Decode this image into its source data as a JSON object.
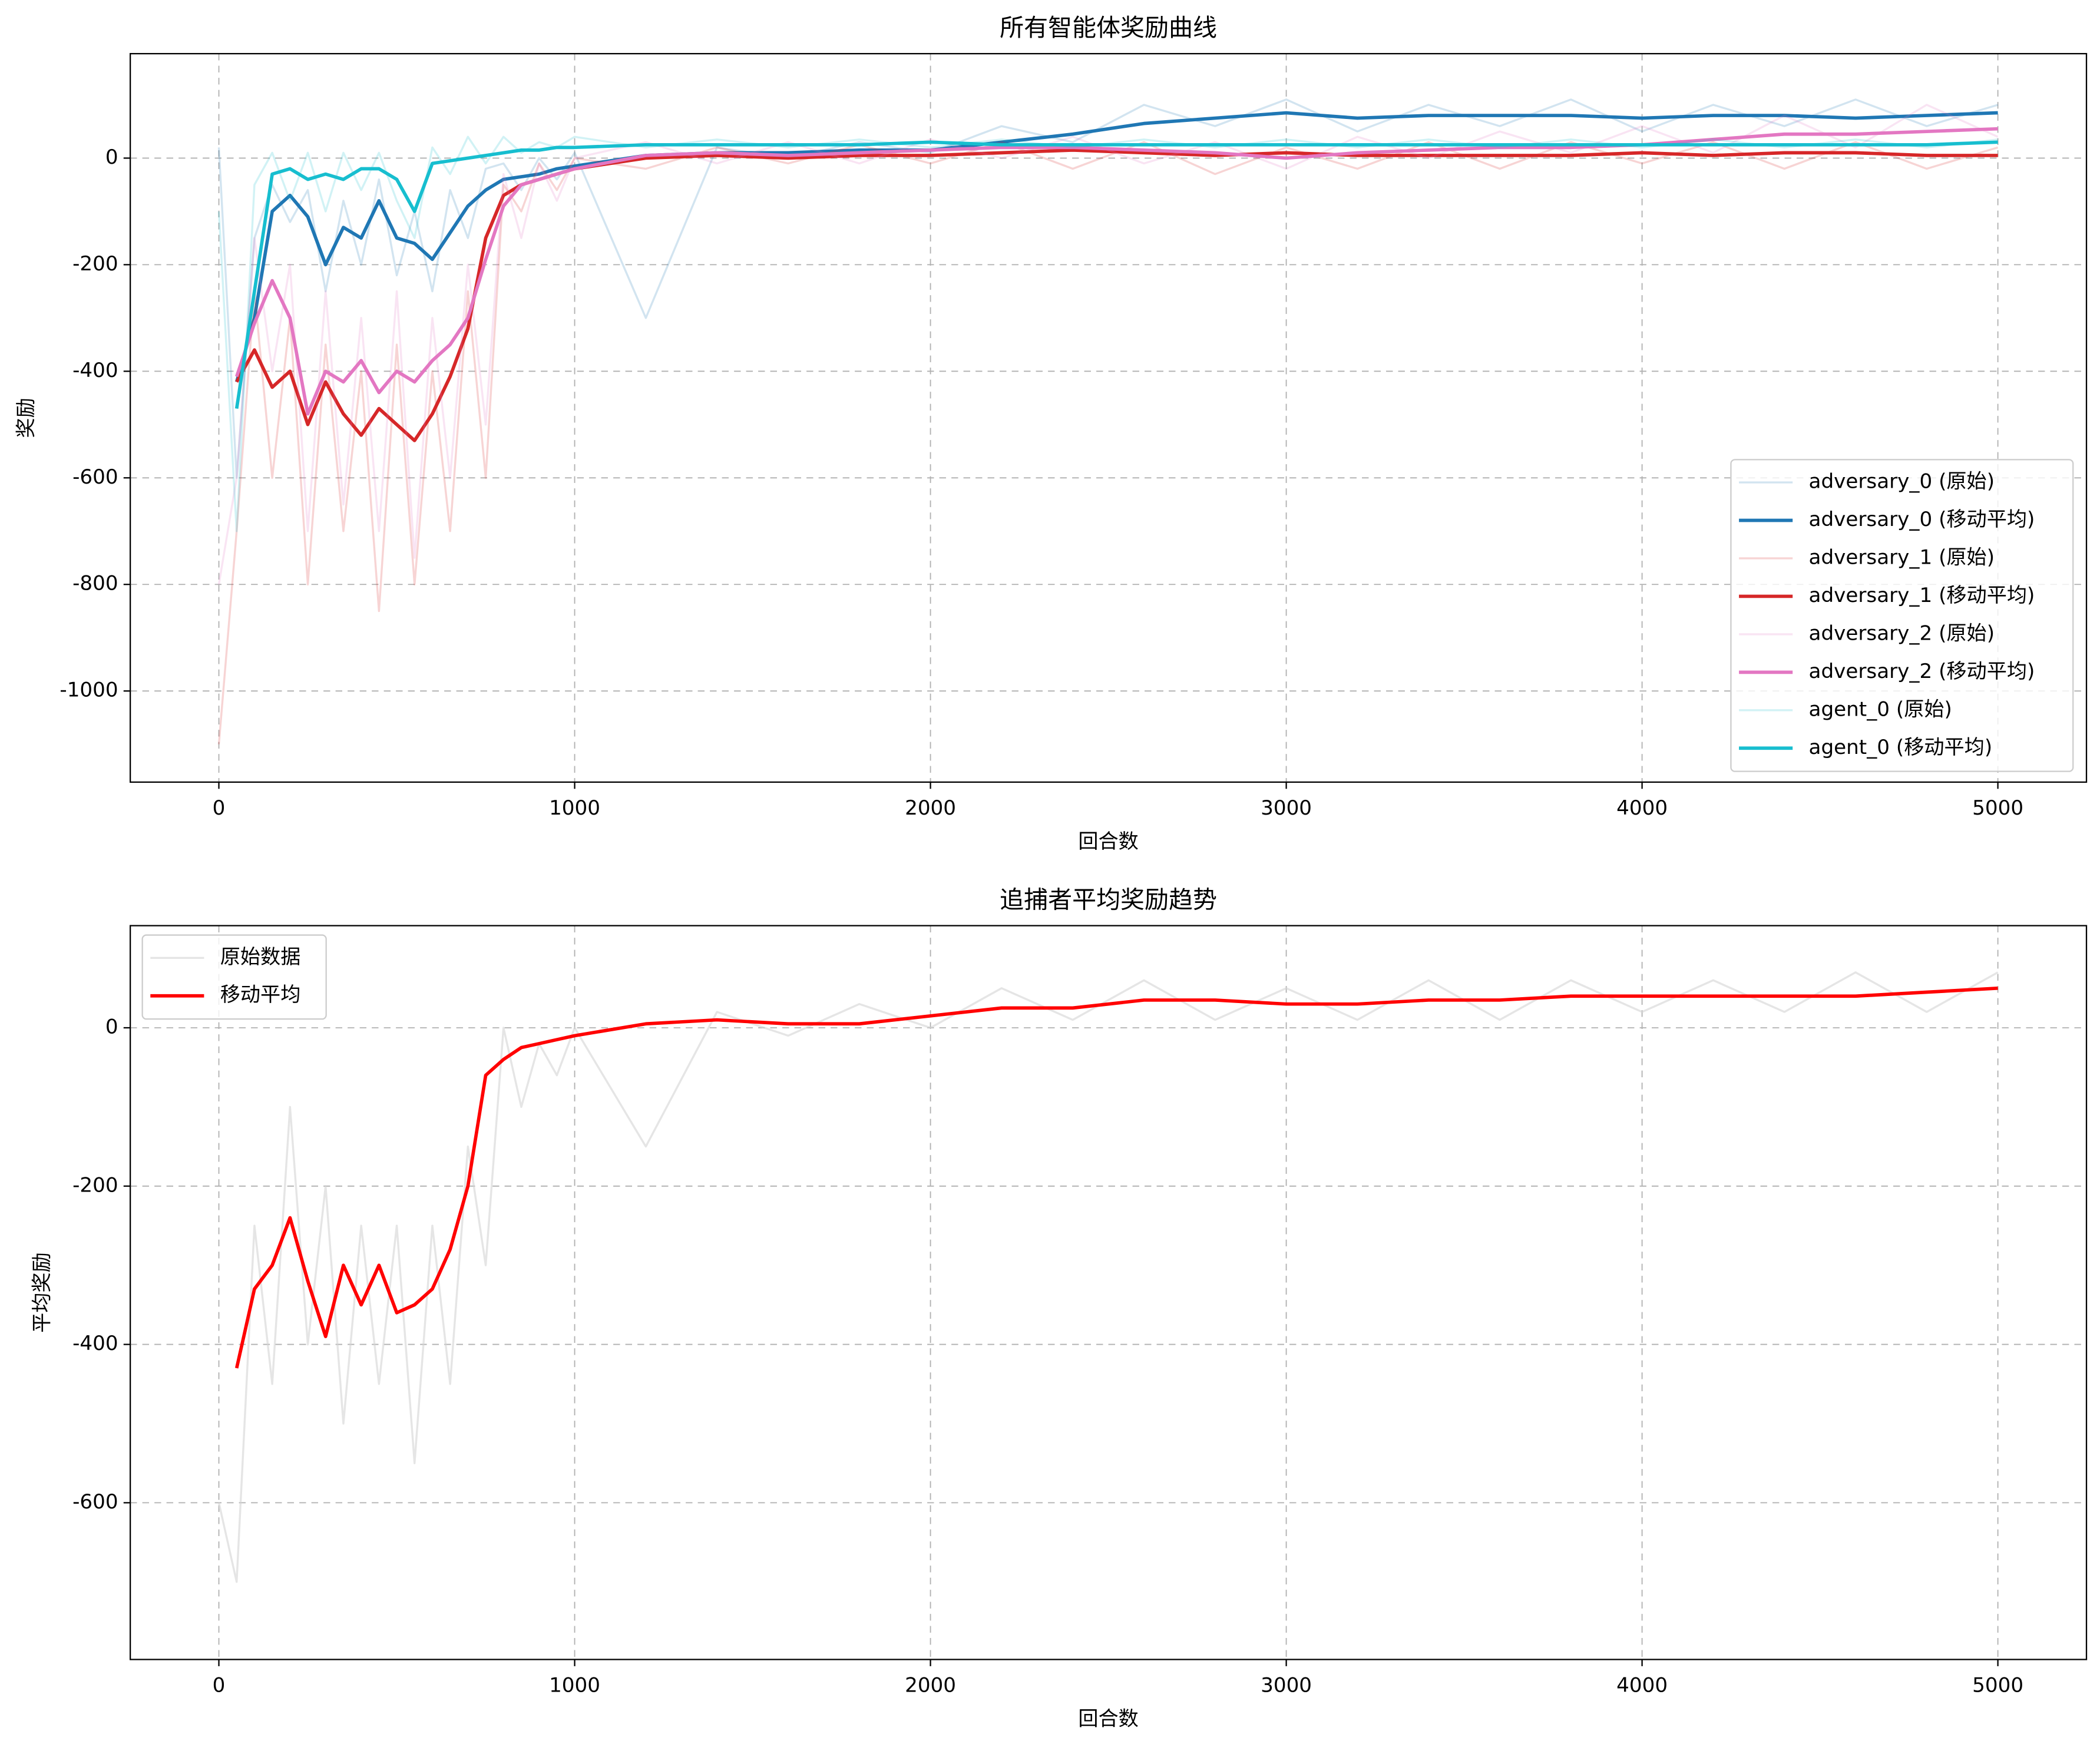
{
  "chart_data": [
    {
      "type": "line",
      "title": "所有智能体奖励曲线",
      "xlabel": "回合数",
      "ylabel": "奖励",
      "x": [
        0,
        50,
        100,
        150,
        200,
        250,
        300,
        350,
        400,
        450,
        500,
        550,
        600,
        650,
        700,
        750,
        800,
        850,
        900,
        950,
        1000,
        1200,
        1400,
        1600,
        1800,
        2000,
        2200,
        2400,
        2600,
        2800,
        3000,
        3200,
        3400,
        3600,
        3800,
        4000,
        4200,
        4400,
        4600,
        4800,
        5000
      ],
      "xlim": [
        -249,
        5249
      ],
      "ylim": [
        -1171,
        196
      ],
      "xticks": [
        0,
        1000,
        2000,
        3000,
        4000,
        5000
      ],
      "yticks": [
        -1000,
        -800,
        -600,
        -400,
        -200,
        0
      ],
      "grid": true,
      "legend": "lower right",
      "series": [
        {
          "name": "adversary_0 (原始)",
          "color": "#1f77b4",
          "alpha": 0.2,
          "values": [
            20,
            -600,
            -150,
            -50,
            -120,
            -60,
            -250,
            -80,
            -200,
            -40,
            -220,
            -100,
            -250,
            -60,
            -150,
            -20,
            -10,
            -60,
            0,
            -40,
            10,
            -300,
            20,
            0,
            30,
            10,
            60,
            30,
            100,
            60,
            110,
            50,
            100,
            60,
            110,
            50,
            100,
            60,
            110,
            60,
            100
          ]
        },
        {
          "name": "adversary_0 (移动平均)",
          "color": "#1f77b4",
          "alpha": 1,
          "values": [
            null,
            -420,
            -300,
            -100,
            -70,
            -110,
            -200,
            -130,
            -150,
            -80,
            -150,
            -160,
            -190,
            -140,
            -90,
            -60,
            -40,
            -35,
            -30,
            -20,
            -15,
            5,
            10,
            10,
            15,
            15,
            30,
            45,
            65,
            75,
            85,
            75,
            80,
            80,
            80,
            75,
            80,
            80,
            75,
            80,
            85
          ]
        },
        {
          "name": "adversary_1 (原始)",
          "color": "#d62728",
          "alpha": 0.2,
          "values": [
            -1100,
            -700,
            -250,
            -600,
            -300,
            -800,
            -350,
            -700,
            -400,
            -850,
            -350,
            -800,
            -400,
            -700,
            -250,
            -600,
            -50,
            -100,
            -10,
            -60,
            0,
            -20,
            20,
            -10,
            25,
            -10,
            30,
            -20,
            30,
            -30,
            20,
            -20,
            30,
            -20,
            30,
            -10,
            30,
            -20,
            30,
            -20,
            20
          ]
        },
        {
          "name": "adversary_1 (移动平均)",
          "color": "#d62728",
          "alpha": 1,
          "values": [
            null,
            -420,
            -360,
            -430,
            -400,
            -500,
            -420,
            -480,
            -520,
            -470,
            -500,
            -530,
            -480,
            -410,
            -320,
            -150,
            -70,
            -50,
            -40,
            -30,
            -20,
            0,
            5,
            0,
            5,
            5,
            10,
            15,
            10,
            5,
            10,
            5,
            5,
            5,
            5,
            10,
            5,
            10,
            10,
            5,
            5
          ]
        },
        {
          "name": "adversary_2 (原始)",
          "color": "#e377c2",
          "alpha": 0.2,
          "values": [
            -800,
            -600,
            -150,
            -400,
            -200,
            -700,
            -250,
            -650,
            -300,
            -700,
            -250,
            -750,
            -300,
            -600,
            -200,
            -500,
            -30,
            -150,
            -10,
            -80,
            0,
            30,
            -10,
            30,
            -10,
            35,
            0,
            40,
            -10,
            30,
            -20,
            40,
            0,
            50,
            10,
            60,
            10,
            80,
            20,
            100,
            40
          ]
        },
        {
          "name": "adversary_2 (移动平均)",
          "color": "#e377c2",
          "alpha": 1,
          "values": [
            null,
            -410,
            -310,
            -230,
            -300,
            -480,
            -400,
            -420,
            -380,
            -440,
            -400,
            -420,
            -380,
            -350,
            -300,
            -190,
            -90,
            -50,
            -40,
            -30,
            -20,
            5,
            10,
            5,
            10,
            15,
            20,
            20,
            15,
            10,
            0,
            10,
            15,
            20,
            20,
            25,
            35,
            45,
            45,
            50,
            55
          ]
        },
        {
          "name": "agent_0 (原始)",
          "color": "#17becf",
          "alpha": 0.2,
          "values": [
            -100,
            -700,
            -50,
            10,
            -80,
            10,
            -100,
            10,
            -60,
            10,
            -80,
            -150,
            20,
            -30,
            40,
            -10,
            40,
            10,
            30,
            20,
            40,
            20,
            35,
            20,
            35,
            20,
            35,
            20,
            35,
            20,
            35,
            20,
            35,
            20,
            35,
            20,
            35,
            20,
            35,
            20,
            35
          ]
        },
        {
          "name": "agent_0 (移动平均)",
          "color": "#17becf",
          "alpha": 1,
          "values": [
            null,
            -470,
            -250,
            -30,
            -20,
            -40,
            -30,
            -40,
            -20,
            -20,
            -40,
            -100,
            -10,
            -5,
            0,
            5,
            10,
            15,
            15,
            20,
            20,
            25,
            25,
            25,
            25,
            30,
            25,
            25,
            25,
            25,
            25,
            25,
            25,
            25,
            25,
            25,
            25,
            25,
            25,
            25,
            30
          ]
        }
      ]
    },
    {
      "type": "line",
      "title": "追捕者平均奖励趋势",
      "xlabel": "回合数",
      "ylabel": "平均奖励",
      "x": [
        0,
        50,
        100,
        150,
        200,
        250,
        300,
        350,
        400,
        450,
        500,
        550,
        600,
        650,
        700,
        750,
        800,
        850,
        900,
        950,
        1000,
        1200,
        1400,
        1600,
        1800,
        2000,
        2200,
        2400,
        2600,
        2800,
        3000,
        3200,
        3400,
        3600,
        3800,
        4000,
        4200,
        4400,
        4600,
        4800,
        5000
      ],
      "xlim": [
        -249,
        5249
      ],
      "ylim": [
        -798,
        129
      ],
      "xticks": [
        0,
        1000,
        2000,
        3000,
        4000,
        5000
      ],
      "yticks": [
        -600,
        -400,
        -200,
        0
      ],
      "grid": true,
      "legend": "upper left",
      "series": [
        {
          "name": "原始数据",
          "color": "#d3d3d3",
          "alpha": 0.6,
          "values": [
            -600,
            -700,
            -250,
            -450,
            -100,
            -400,
            -200,
            -500,
            -250,
            -450,
            -250,
            -550,
            -250,
            -450,
            -150,
            -300,
            0,
            -100,
            -20,
            -60,
            0,
            -150,
            20,
            -10,
            30,
            0,
            50,
            10,
            60,
            10,
            50,
            10,
            60,
            10,
            60,
            20,
            60,
            20,
            70,
            20,
            70
          ]
        },
        {
          "name": "移动平均",
          "color": "#ff0000",
          "alpha": 1,
          "values": [
            null,
            -430,
            -330,
            -300,
            -240,
            -320,
            -390,
            -300,
            -350,
            -300,
            -360,
            -350,
            -330,
            -280,
            -200,
            -60,
            -40,
            -25,
            -20,
            -15,
            -10,
            5,
            10,
            5,
            5,
            15,
            25,
            25,
            35,
            35,
            30,
            30,
            35,
            35,
            40,
            40,
            40,
            40,
            40,
            45,
            50
          ]
        }
      ]
    }
  ]
}
